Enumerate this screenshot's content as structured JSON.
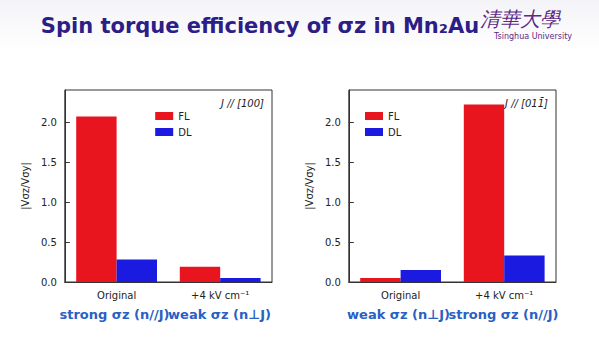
{
  "title": "Spin torque efficiency of σz in Mn₂Au",
  "logo": [
    "清華大學",
    "Tsinghua University"
  ],
  "chart_data": [
    {
      "type": "bar",
      "annotation": "J // [100]",
      "ylabel": "|Vσz/Vσy|",
      "categories": [
        "Original",
        "+4 kV cm⁻¹"
      ],
      "series": [
        {
          "name": "FL",
          "color": "#e8141e",
          "values": [
            2.07,
            0.19
          ]
        },
        {
          "name": "DL",
          "color": "#1a1ae0",
          "values": [
            0.28,
            0.05
          ]
        }
      ],
      "ylim": [
        0,
        2.4
      ],
      "yticks": [
        {
          "value": 0,
          "label": "0.0"
        },
        0.5,
        {
          "value": 1,
          "label": "1.0"
        },
        1.5,
        {
          "value": 2,
          "label": "2.0"
        }
      ],
      "legend": "upper center",
      "captions": [
        "strong σz (n//J)",
        "weak σz (n⊥J)"
      ]
    },
    {
      "type": "bar",
      "annotation": "J // [011̄]",
      "ylabel": "|Vσz/Vσy|",
      "categories": [
        "Original",
        "+4 kV cm⁻¹"
      ],
      "series": [
        {
          "name": "FL",
          "color": "#e8141e",
          "values": [
            0.05,
            2.22
          ]
        },
        {
          "name": "DL",
          "color": "#1a1ae0",
          "values": [
            0.15,
            0.33
          ]
        }
      ],
      "ylim": [
        0,
        2.4
      ],
      "yticks": [
        {
          "value": 0,
          "label": "0.0"
        },
        0.5,
        {
          "value": 1,
          "label": "1.0"
        },
        1.5,
        {
          "value": 2,
          "label": "2.0"
        }
      ],
      "legend": "upper left",
      "captions": [
        "weak σz (n⊥J)",
        "strong σz (n//J)"
      ]
    }
  ]
}
